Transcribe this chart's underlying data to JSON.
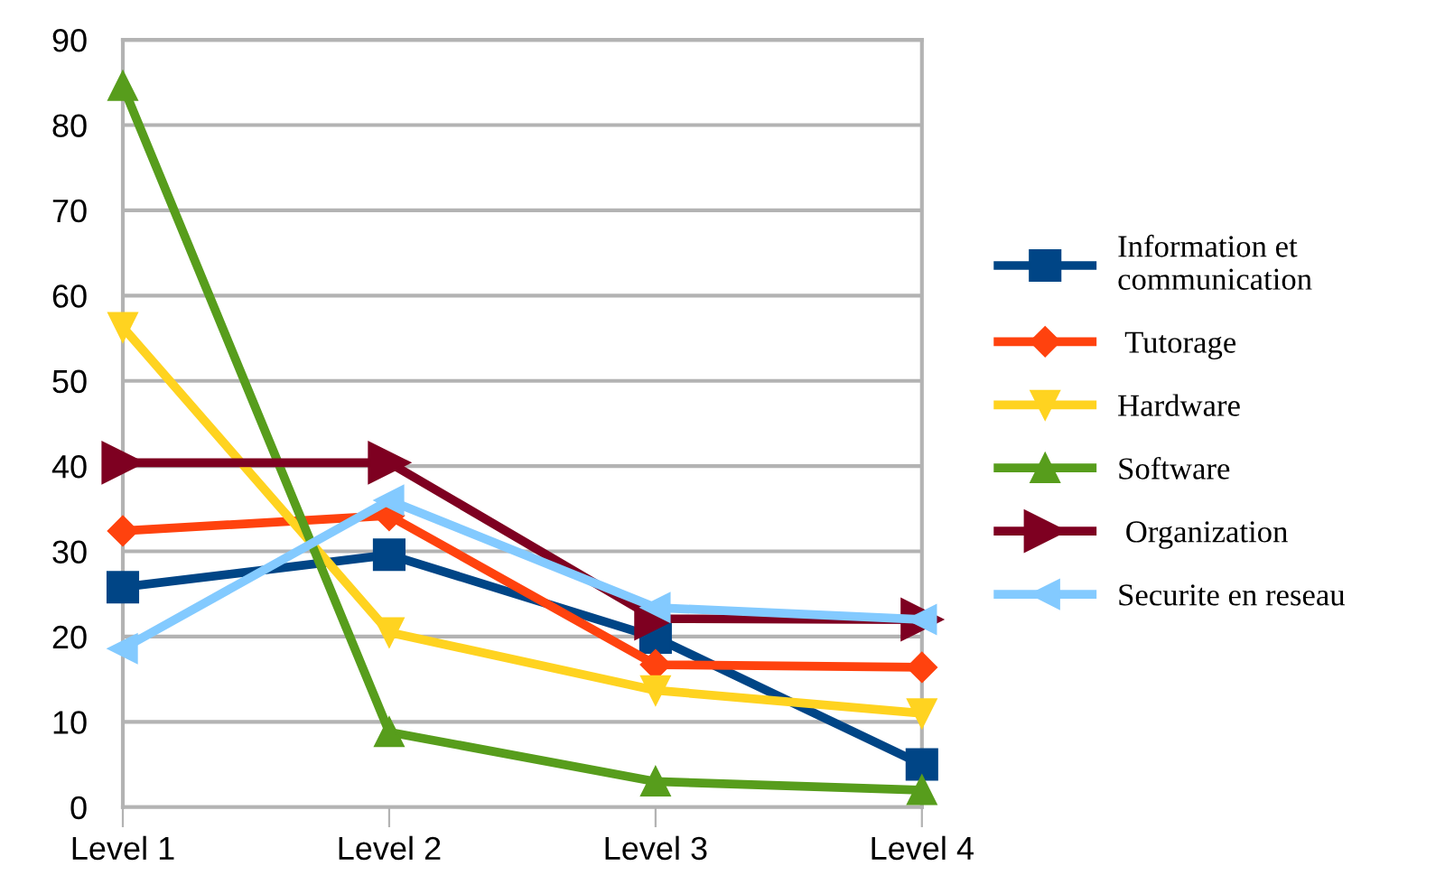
{
  "chart_data": {
    "type": "line",
    "categories": [
      "Level 1",
      "Level 2",
      "Level 3",
      "Level 4"
    ],
    "series": [
      {
        "name": "Information et\ncommunication",
        "color": "#004586",
        "marker": "square",
        "values": [
          25.8,
          29.6,
          19.9,
          5.0
        ]
      },
      {
        "name": " Tutorage",
        "color": "#ff420e",
        "marker": "diamond",
        "values": [
          32.4,
          34.2,
          16.7,
          16.4
        ]
      },
      {
        "name": "Hardware",
        "color": "#ffd320",
        "marker": "triangle_down",
        "values": [
          56.3,
          20.5,
          13.7,
          11.0
        ]
      },
      {
        "name": "Software",
        "color": "#579d1c",
        "marker": "triangle",
        "values": [
          84.6,
          8.8,
          3.0,
          2.0
        ]
      },
      {
        "name": " Organization",
        "color": "#7e0021",
        "marker": "triangle_right",
        "values": [
          40.4,
          40.4,
          22.1,
          22.0
        ]
      },
      {
        "name": "Securite en reseau",
        "color": "#83caff",
        "marker": "triangle_left",
        "values": [
          18.6,
          36.0,
          23.4,
          22.0
        ]
      }
    ],
    "ylim": [
      0,
      90
    ],
    "yticks": [
      0,
      10,
      20,
      30,
      40,
      50,
      60,
      70,
      80,
      90
    ],
    "grid": "y",
    "legend": "right",
    "line_style": "solid"
  }
}
